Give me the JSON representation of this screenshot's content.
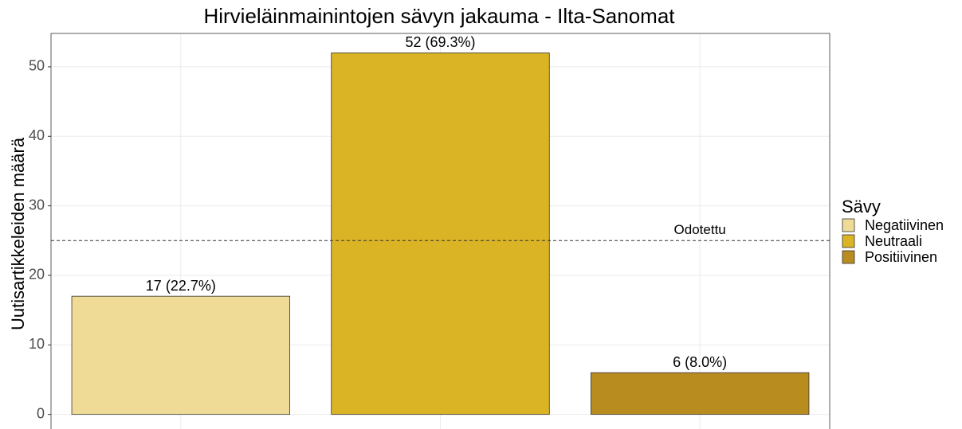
{
  "chart_data": {
    "type": "bar",
    "title": "Hirvieläinmainintojen sävyn jakauma - Ilta-Sanomat",
    "y_label": "Uutisartikkeleiden määrä",
    "categories": [
      "Negatiivinen",
      "Neutraali",
      "Positiivinen"
    ],
    "values": [
      17,
      52,
      6
    ],
    "value_labels": [
      "17 (22.7%)",
      "52 (69.3%)",
      "6 (8.0%)"
    ],
    "colors": [
      "#efdb96",
      "#dab424",
      "#b98c20"
    ],
    "legend_title": "Sävy",
    "legend": "right",
    "reference_line": {
      "value": 25,
      "label": "Odotettu"
    },
    "ylim": [
      -2.1,
      54.8
    ],
    "yticks": [
      0,
      10,
      20,
      30,
      40,
      50
    ],
    "grid": true
  }
}
